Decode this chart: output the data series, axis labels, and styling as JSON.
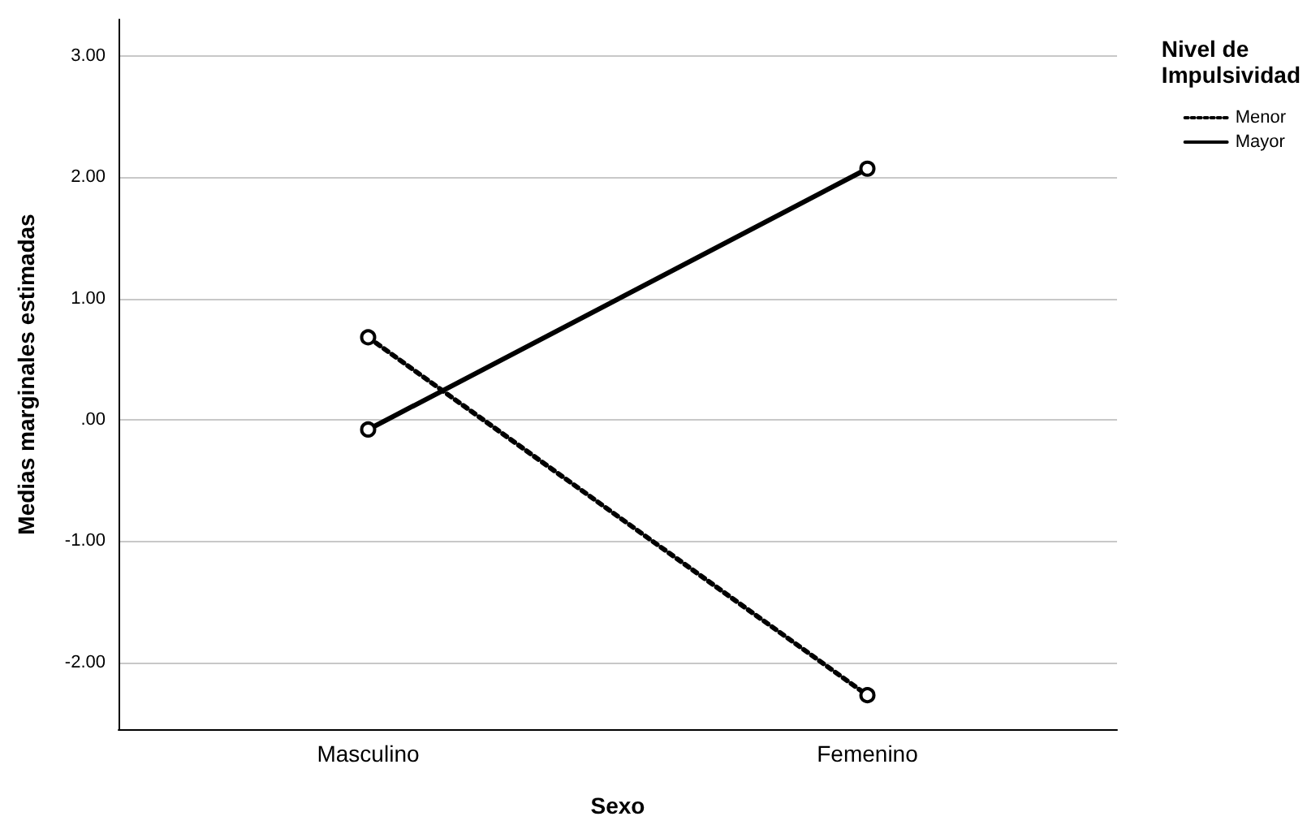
{
  "chart_data": {
    "type": "line",
    "xlabel": "Sexo",
    "ylabel": "Medias marginales estimadas",
    "legend_title": "Nivel de Impulsividad",
    "categories": [
      "Masculino",
      "Femenino"
    ],
    "series": [
      {
        "name": "Menor",
        "color": "#000000",
        "values": [
          0.68,
          -2.27
        ],
        "line_style": "dotted"
      },
      {
        "name": "Mayor",
        "color": "#000000",
        "values": [
          -0.08,
          2.07
        ],
        "line_style": "solid"
      }
    ],
    "ylim": [
      -2.55,
      3.3
    ],
    "yticks": [
      {
        "value": -2,
        "label": "-2.00"
      },
      {
        "value": -1,
        "label": "-1.00"
      },
      {
        "value": 0,
        "label": ".00"
      },
      {
        "value": 1,
        "label": "1.00"
      },
      {
        "value": 2,
        "label": "2.00"
      },
      {
        "value": 3,
        "label": "3.00"
      }
    ],
    "grid": "y",
    "legend": "top right",
    "marker": "circle"
  }
}
